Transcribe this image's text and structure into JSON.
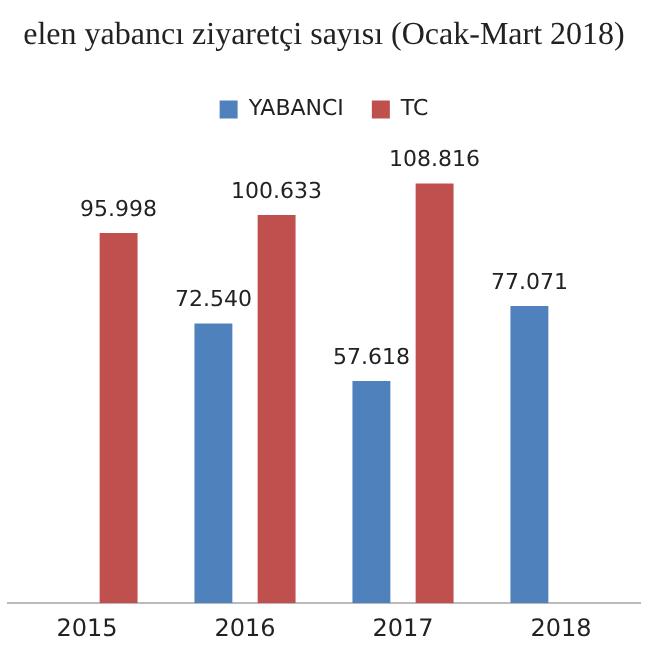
{
  "chart_data": {
    "type": "bar",
    "title": "elen yabancı ziyaretçi sayısı (Ocak-Mart 2018)",
    "categories": [
      "2015",
      "2016",
      "2017",
      "2018"
    ],
    "series": [
      {
        "name": "YABANCI",
        "color": "#4f81bd",
        "values": [
          null,
          72.54,
          57.618,
          77.071
        ],
        "value_labels": [
          null,
          "72.540",
          "57.618",
          "77.071"
        ]
      },
      {
        "name": "TC",
        "color": "#c0504d",
        "values": [
          95.998,
          100.633,
          108.816,
          null
        ],
        "value_labels": [
          "95.998",
          "100.633",
          "108.816",
          null
        ]
      }
    ],
    "legend": "top",
    "grid": false
  }
}
